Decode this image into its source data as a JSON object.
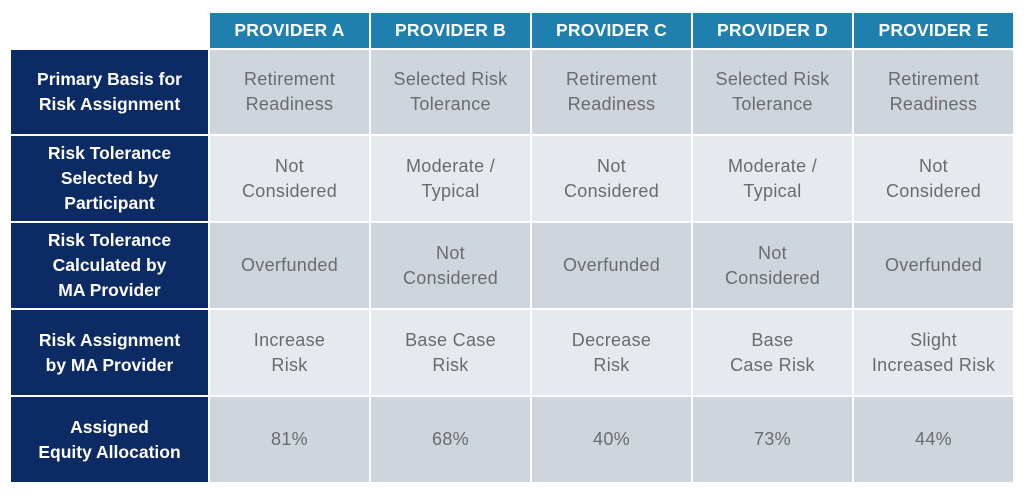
{
  "columns": [
    "PROVIDER A",
    "PROVIDER B",
    "PROVIDER C",
    "PROVIDER D",
    "PROVIDER E"
  ],
  "rows": [
    {
      "label": "Primary Basis for\nRisk Assignment",
      "cells": [
        "Retirement\nReadiness",
        "Selected Risk\nTolerance",
        "Retirement\nReadiness",
        "Selected Risk\nTolerance",
        "Retirement\nReadiness"
      ]
    },
    {
      "label": "Risk Tolerance\nSelected by\nParticipant",
      "cells": [
        "Not\nConsidered",
        "Moderate /\nTypical",
        "Not\nConsidered",
        "Moderate /\nTypical",
        "Not\nConsidered"
      ]
    },
    {
      "label": "Risk Tolerance\nCalculated by\nMA Provider",
      "cells": [
        "Overfunded",
        "Not\nConsidered",
        "Overfunded",
        "Not\nConsidered",
        "Overfunded"
      ]
    },
    {
      "label": "Risk Assignment\nby MA Provider",
      "cells": [
        "Increase\nRisk",
        "Base Case\nRisk",
        "Decrease\nRisk",
        "Base\nCase Risk",
        "Slight\nIncreased Risk"
      ]
    },
    {
      "label": "Assigned\nEquity Allocation",
      "cells": [
        "81%",
        "68%",
        "40%",
        "73%",
        "44%"
      ]
    }
  ],
  "colors": {
    "column_header_bg": "#1f7fae",
    "row_header_bg": "#0c2a63",
    "cell_dark_bg": "#cfd5dd",
    "cell_light_bg": "#e6e9ed",
    "cell_text": "#6b6b6b"
  }
}
